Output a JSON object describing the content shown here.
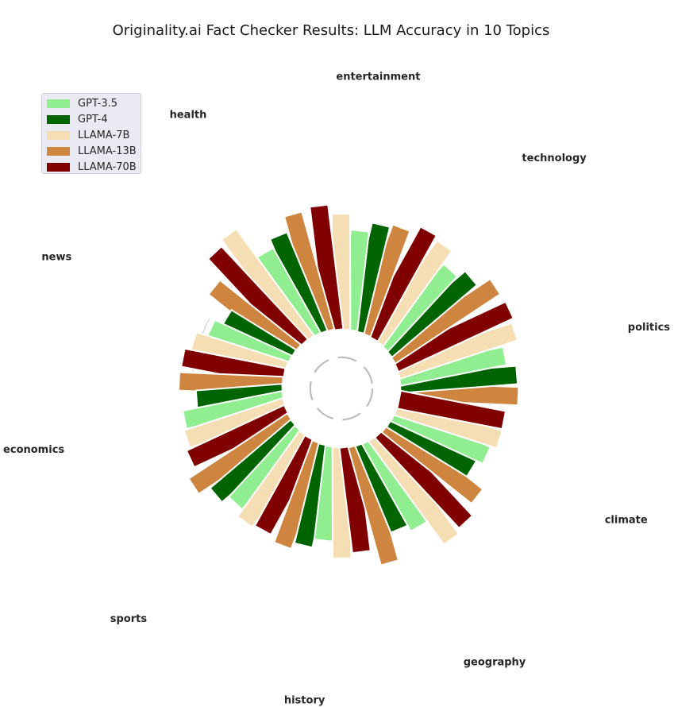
{
  "chart_data": {
    "type": "bar",
    "subtype": "radial",
    "title": "Originality.ai Fact Checker Results: LLM Accuracy in 10 Topics",
    "categories": [
      "politics",
      "technology",
      "entertainment",
      "health",
      "news",
      "economics",
      "sports",
      "history",
      "geography",
      "climate"
    ],
    "series": [
      {
        "name": "GPT-3.5",
        "color": "#90ee90",
        "values": [
          206,
          195,
          191,
          185,
          162,
          193,
          186,
          180,
          190,
          193
        ]
      },
      {
        "name": "GPT-4",
        "color": "#006400",
        "values": [
          224,
          213,
          209,
          203,
          145,
          165,
          202,
          196,
          178,
          180
        ]
      },
      {
        "name": "LLAMA-7B",
        "color": "#f5deb3",
        "values": [
          236,
          224,
          221,
          252,
          184,
          198,
          202,
          212,
          244,
          205
        ]
      },
      {
        "name": "LLAMA-13B",
        "color": "#cd853f",
        "values": [
          226,
          240,
          215,
          233,
          198,
          198,
          226,
          208,
          233,
          219
        ]
      },
      {
        "name": "LLAMA-70B",
        "color": "#800000",
        "values": [
          242,
          231,
          239,
          242,
          196,
          206,
          197,
          202,
          236,
          204
        ]
      }
    ],
    "angular_order": [
      "LLAMA-13B",
      "GPT-4",
      "GPT-3.5",
      "LLAMA-7B",
      "LLAMA-70B"
    ],
    "legend": {
      "position": "top-left",
      "entries": [
        "GPT-3.5",
        "GPT-4",
        "LLAMA-7B",
        "LLAMA-13B",
        "LLAMA-70B"
      ]
    },
    "radial_axis": {
      "min": 0,
      "max": 260,
      "ticks": [
        100,
        150,
        200,
        250
      ],
      "style": "dashed-arc"
    },
    "grid": true
  }
}
